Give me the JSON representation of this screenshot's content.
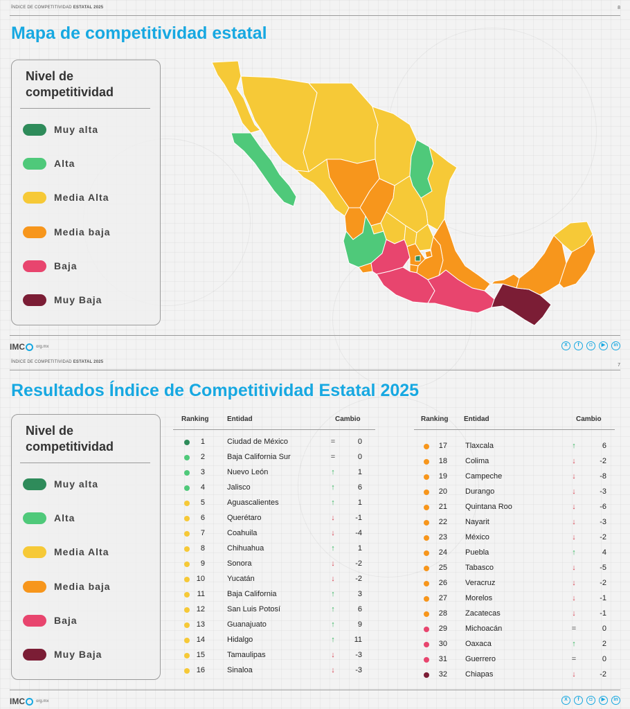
{
  "colors": {
    "muy_alta": "#2e8b5a",
    "alta": "#4fc97a",
    "media_alta": "#f6c937",
    "media_baja": "#f7961c",
    "baja": "#e8456e",
    "muy_baja": "#7b1d35",
    "accent": "#17a8e1"
  },
  "page1": {
    "header_prefix": "ÍNDICE DE COMPETITIVIDAD",
    "header_bold": "ESTATAL 2025",
    "page_number": "8",
    "title": "Mapa de competitividad estatal"
  },
  "page2": {
    "header_prefix": "ÍNDICE DE COMPETITIVIDAD",
    "header_bold": "ESTATAL 2025",
    "page_number": "7",
    "title": "Resultados Índice de Competitividad Estatal 2025"
  },
  "legend": {
    "title": "Nivel de competitividad",
    "items": [
      "Muy alta",
      "Alta",
      "Media Alta",
      "Media baja",
      "Baja",
      "Muy Baja"
    ]
  },
  "footer": {
    "logo_prefix": "IMC",
    "logo_suffix": "org.mx",
    "social_icons": [
      "x-icon",
      "facebook-icon",
      "instagram-icon",
      "youtube-icon",
      "linkedin-icon"
    ]
  },
  "table": {
    "headers": {
      "ranking": "Ranking",
      "entidad": "Entidad",
      "cambio": "Cambio"
    },
    "rows": [
      {
        "rank": "1",
        "entidad": "Ciudad de México",
        "trend": "eq",
        "cambio": "0",
        "level": "muy_alta"
      },
      {
        "rank": "2",
        "entidad": "Baja California Sur",
        "trend": "eq",
        "cambio": "0",
        "level": "alta"
      },
      {
        "rank": "3",
        "entidad": "Nuevo León",
        "trend": "up",
        "cambio": "1",
        "level": "alta"
      },
      {
        "rank": "4",
        "entidad": "Jalisco",
        "trend": "up",
        "cambio": "6",
        "level": "alta"
      },
      {
        "rank": "5",
        "entidad": "Aguascalientes",
        "trend": "up",
        "cambio": "1",
        "level": "media_alta"
      },
      {
        "rank": "6",
        "entidad": "Querétaro",
        "trend": "down",
        "cambio": "-1",
        "level": "media_alta"
      },
      {
        "rank": "7",
        "entidad": "Coahuila",
        "trend": "down",
        "cambio": "-4",
        "level": "media_alta"
      },
      {
        "rank": "8",
        "entidad": "Chihuahua",
        "trend": "up",
        "cambio": "1",
        "level": "media_alta"
      },
      {
        "rank": "9",
        "entidad": "Sonora",
        "trend": "down",
        "cambio": "-2",
        "level": "media_alta"
      },
      {
        "rank": "10",
        "entidad": "Yucatán",
        "trend": "down",
        "cambio": "-2",
        "level": "media_alta"
      },
      {
        "rank": "11",
        "entidad": "Baja California",
        "trend": "up",
        "cambio": "3",
        "level": "media_alta"
      },
      {
        "rank": "12",
        "entidad": "San Luis Potosí",
        "trend": "up",
        "cambio": "6",
        "level": "media_alta"
      },
      {
        "rank": "13",
        "entidad": "Guanajuato",
        "trend": "up",
        "cambio": "9",
        "level": "media_alta"
      },
      {
        "rank": "14",
        "entidad": "Hidalgo",
        "trend": "up",
        "cambio": "11",
        "level": "media_alta"
      },
      {
        "rank": "15",
        "entidad": "Tamaulipas",
        "trend": "down",
        "cambio": "-3",
        "level": "media_alta"
      },
      {
        "rank": "16",
        "entidad": "Sinaloa",
        "trend": "down",
        "cambio": "-3",
        "level": "media_alta"
      },
      {
        "rank": "17",
        "entidad": "Tlaxcala",
        "trend": "up",
        "cambio": "6",
        "level": "media_baja"
      },
      {
        "rank": "18",
        "entidad": "Colima",
        "trend": "down",
        "cambio": "-2",
        "level": "media_baja"
      },
      {
        "rank": "19",
        "entidad": "Campeche",
        "trend": "down",
        "cambio": "-8",
        "level": "media_baja"
      },
      {
        "rank": "20",
        "entidad": "Durango",
        "trend": "down",
        "cambio": "-3",
        "level": "media_baja"
      },
      {
        "rank": "21",
        "entidad": "Quintana Roo",
        "trend": "down",
        "cambio": "-6",
        "level": "media_baja"
      },
      {
        "rank": "22",
        "entidad": "Nayarit",
        "trend": "down",
        "cambio": "-3",
        "level": "media_baja"
      },
      {
        "rank": "23",
        "entidad": "México",
        "trend": "down",
        "cambio": "-2",
        "level": "media_baja"
      },
      {
        "rank": "24",
        "entidad": "Puebla",
        "trend": "up",
        "cambio": "4",
        "level": "media_baja"
      },
      {
        "rank": "25",
        "entidad": "Tabasco",
        "trend": "down",
        "cambio": "-5",
        "level": "media_baja"
      },
      {
        "rank": "26",
        "entidad": "Veracruz",
        "trend": "down",
        "cambio": "-2",
        "level": "media_baja"
      },
      {
        "rank": "27",
        "entidad": "Morelos",
        "trend": "down",
        "cambio": "-1",
        "level": "media_baja"
      },
      {
        "rank": "28",
        "entidad": "Zacatecas",
        "trend": "down",
        "cambio": "-1",
        "level": "media_baja"
      },
      {
        "rank": "29",
        "entidad": "Michoacán",
        "trend": "eq",
        "cambio": "0",
        "level": "baja"
      },
      {
        "rank": "30",
        "entidad": "Oaxaca",
        "trend": "up",
        "cambio": "2",
        "level": "baja"
      },
      {
        "rank": "31",
        "entidad": "Guerrero",
        "trend": "eq",
        "cambio": "0",
        "level": "baja"
      },
      {
        "rank": "32",
        "entidad": "Chiapas",
        "trend": "down",
        "cambio": "-2",
        "level": "muy_baja"
      }
    ]
  },
  "trend_symbols": {
    "up": "↑",
    "down": "↓",
    "eq": "="
  }
}
